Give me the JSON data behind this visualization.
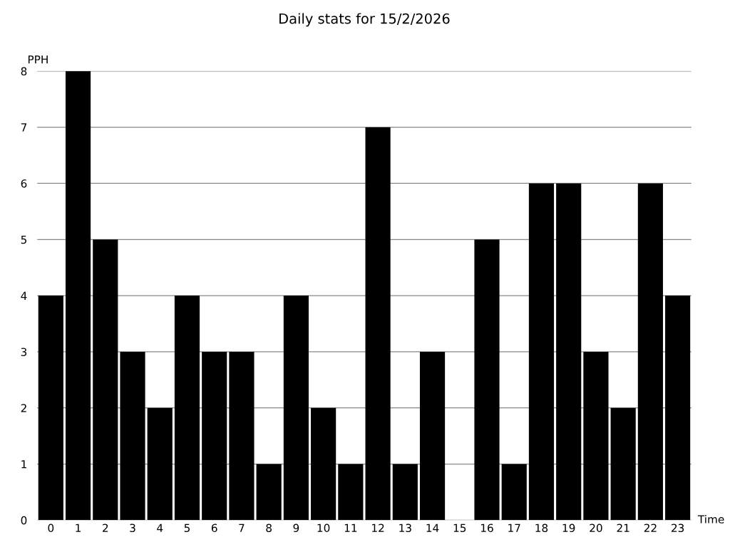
{
  "chart_data": {
    "type": "bar",
    "title": "Daily stats for 15/2/2026",
    "xlabel": "Time",
    "ylabel": "PPH",
    "categories": [
      "0",
      "1",
      "2",
      "3",
      "4",
      "5",
      "6",
      "7",
      "8",
      "9",
      "10",
      "11",
      "12",
      "13",
      "14",
      "15",
      "16",
      "17",
      "18",
      "19",
      "20",
      "21",
      "22",
      "23"
    ],
    "values": [
      4,
      8,
      5,
      3,
      2,
      4,
      3,
      3,
      1,
      4,
      2,
      1,
      7,
      1,
      3,
      0,
      5,
      1,
      6,
      6,
      3,
      2,
      6,
      4
    ],
    "color": "#000000",
    "ylim": [
      0,
      8
    ],
    "yticks": [
      0,
      1,
      2,
      3,
      4,
      5,
      6,
      7,
      8
    ],
    "grid": "y"
  }
}
